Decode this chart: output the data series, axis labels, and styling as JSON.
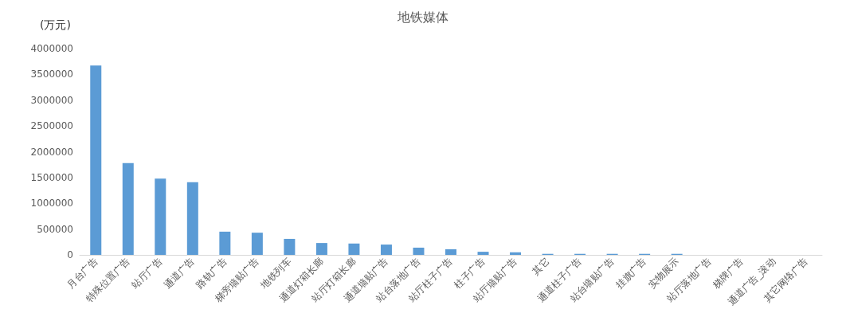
{
  "chart_data": {
    "type": "bar",
    "title": "地铁媒体",
    "ylabel": "(万元)",
    "categories": [
      "月台广告",
      "特殊位置广告",
      "站厅广告",
      "通道广告",
      "路轨广告",
      "梯旁墙贴广告",
      "地铁列车",
      "通道灯箱长廊",
      "站厅灯箱长廊",
      "通道墙贴广告",
      "站台落地广告",
      "站厅柱子广告",
      "柱子广告",
      "站厅墙贴广告",
      "其它",
      "通道柱子广告",
      "站台墙贴广告",
      "挂旗广告",
      "实物展示",
      "站厅落地广告",
      "梯牌广告",
      "通道广告_滚动",
      "其它网络广告"
    ],
    "values": [
      3670000,
      1780000,
      1480000,
      1410000,
      450000,
      430000,
      310000,
      230000,
      220000,
      200000,
      140000,
      110000,
      60000,
      50000,
      20000,
      20000,
      20000,
      20000,
      20000,
      0,
      0,
      0,
      0
    ],
    "color": "#5b9bd5",
    "ylim": [
      0,
      4000000
    ],
    "yticks": [
      0,
      500000,
      1000000,
      1500000,
      2000000,
      2500000,
      3000000,
      3500000,
      4000000
    ],
    "grid": false
  }
}
